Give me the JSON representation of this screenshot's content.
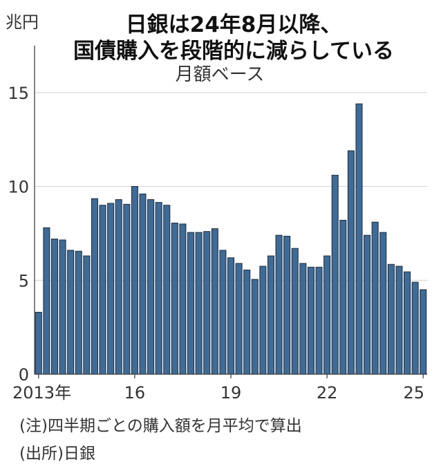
{
  "title_line1": "日銀は24年8月以降、",
  "title_line2": "国債購入を段階的に減らしている",
  "subtitle": "月額ベース",
  "unit_label": "兆円",
  "notes": {
    "note": "(注)四半期ごとの購入額を月平均で算出",
    "source": "(出所)日銀"
  },
  "chart_data": {
    "type": "bar",
    "title": "日銀は24年8月以降、国債購入を段階的に減らしている",
    "subtitle": "月額ベース",
    "ylabel": "兆円",
    "ylim": [
      0,
      17.5
    ],
    "yticks": [
      0,
      5,
      10,
      15
    ],
    "xtick_labels": [
      {
        "index": 0,
        "label": "2013年"
      },
      {
        "index": 12,
        "label": "16"
      },
      {
        "index": 24,
        "label": "19"
      },
      {
        "index": 36,
        "label": "22"
      },
      {
        "index": 48,
        "label": "25"
      }
    ],
    "categories": [
      "2013Q1",
      "2013Q2",
      "2013Q3",
      "2013Q4",
      "2014Q1",
      "2014Q2",
      "2014Q3",
      "2014Q4",
      "2015Q1",
      "2015Q2",
      "2015Q3",
      "2015Q4",
      "2016Q1",
      "2016Q2",
      "2016Q3",
      "2016Q4",
      "2017Q1",
      "2017Q2",
      "2017Q3",
      "2017Q4",
      "2018Q1",
      "2018Q2",
      "2018Q3",
      "2018Q4",
      "2019Q1",
      "2019Q2",
      "2019Q3",
      "2019Q4",
      "2020Q1",
      "2020Q2",
      "2020Q3",
      "2020Q4",
      "2021Q1",
      "2021Q2",
      "2021Q3",
      "2021Q4",
      "2022Q1",
      "2022Q2",
      "2022Q3",
      "2022Q4",
      "2023Q1",
      "2023Q2",
      "2023Q3",
      "2023Q4",
      "2024Q1",
      "2024Q2",
      "2024Q3",
      "2024Q4",
      "2025Q1"
    ],
    "values": [
      3.3,
      7.8,
      7.2,
      7.15,
      6.6,
      6.55,
      6.3,
      9.35,
      9.0,
      9.1,
      9.3,
      9.05,
      10.0,
      9.6,
      9.3,
      9.15,
      9.0,
      8.05,
      8.0,
      7.55,
      7.55,
      7.6,
      7.75,
      6.6,
      6.2,
      5.9,
      5.55,
      5.05,
      5.75,
      6.3,
      7.4,
      7.35,
      6.7,
      5.9,
      5.7,
      5.7,
      6.3,
      10.6,
      8.2,
      11.9,
      14.4,
      7.4,
      8.1,
      7.55,
      5.85,
      5.75,
      5.45,
      4.9,
      4.5
    ],
    "colors": {
      "bar": "#3e6b98",
      "bar_edge": "#1f2a36"
    }
  }
}
